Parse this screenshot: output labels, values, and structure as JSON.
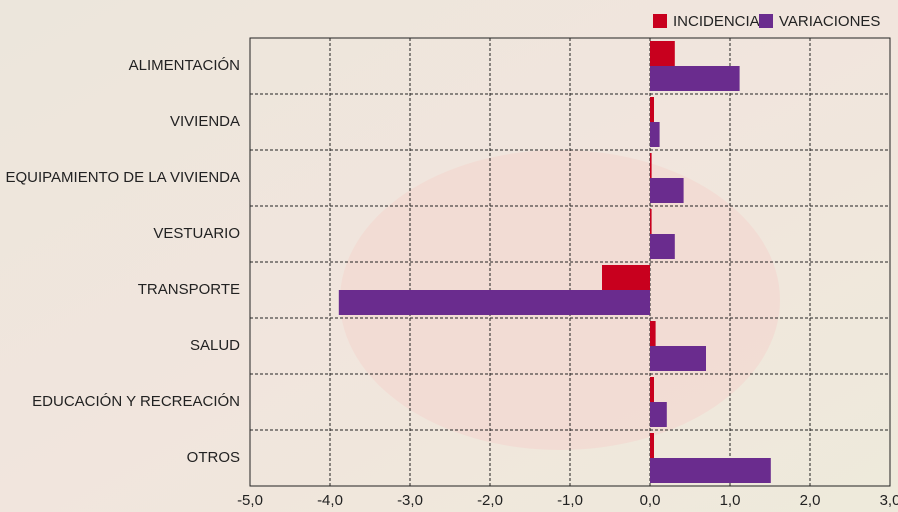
{
  "chart_data": {
    "type": "hbar",
    "categories": [
      "ALIMENTACIÓN",
      "VIVIENDA",
      "EQUIPAMIENTO DE LA VIVIENDA",
      "VESTUARIO",
      "TRANSPORTE",
      "SALUD",
      "EDUCACIÓN Y RECREACIÓN",
      "OTROS"
    ],
    "series": [
      {
        "name": "INCIDENCIAS",
        "color": "#c8001e",
        "values": [
          0.31,
          0.05,
          0.02,
          0.02,
          -0.6,
          0.07,
          0.05,
          0.05
        ]
      },
      {
        "name": "VARIACIONES",
        "color": "#6a2c8e",
        "values": [
          1.12,
          0.12,
          0.42,
          0.31,
          -3.89,
          0.7,
          0.21,
          1.51
        ]
      }
    ],
    "xlim": [
      -5,
      3
    ],
    "xticks": [
      {
        "value": -5,
        "label": "-5,0"
      },
      {
        "value": -4,
        "label": "-4,0"
      },
      {
        "value": -3,
        "label": "-3,0"
      },
      {
        "value": -2,
        "label": "-2,0"
      },
      {
        "value": -1,
        "label": "-1,0"
      },
      {
        "value": 0,
        "label": "0,0"
      },
      {
        "value": 1,
        "label": "1,0"
      },
      {
        "value": 2,
        "label": "2,0"
      },
      {
        "value": 3,
        "label": "3,0"
      }
    ],
    "grid": true,
    "legend": "top-right"
  }
}
